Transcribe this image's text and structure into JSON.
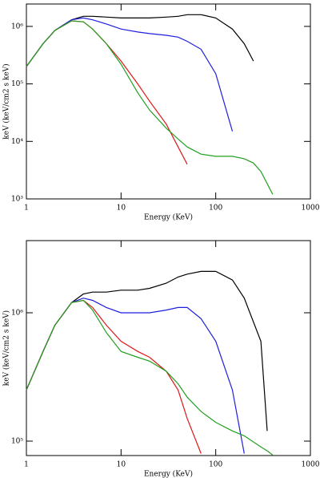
{
  "chart_data": [
    {
      "type": "line",
      "xlabel": "Energy (KeV)",
      "ylabel": "keV (keV/cm2 s keV)",
      "xscale": "log",
      "yscale": "log",
      "xlim": [
        1,
        1000
      ],
      "ylim": [
        1000,
        2450000
      ],
      "xticks": [
        1,
        10,
        100,
        1000
      ],
      "yticks": [
        {
          "value": 1000,
          "label": "10³"
        },
        {
          "value": 10000,
          "label": "10⁴"
        },
        {
          "value": 100000,
          "label": "10⁵"
        },
        {
          "value": 1000000,
          "label": "10⁶"
        }
      ],
      "x": [
        1,
        1.5,
        2,
        3,
        4,
        5,
        7,
        10,
        15,
        20,
        30,
        40,
        50,
        70,
        100,
        150,
        200,
        250,
        300,
        400
      ],
      "series": [
        {
          "color": "#000000",
          "values": [
            200000,
            500000,
            850000,
            1300000,
            1500000,
            1500000,
            1450000,
            1400000,
            1400000,
            1400000,
            1450000,
            1500000,
            1600000,
            1600000,
            1400000,
            900000,
            500000,
            250000,
            null,
            null
          ]
        },
        {
          "color": "#1f1fe0",
          "values": [
            200000,
            500000,
            850000,
            1300000,
            1400000,
            1300000,
            1100000,
            900000,
            800000,
            750000,
            700000,
            650000,
            550000,
            400000,
            150000,
            15000,
            null,
            null,
            null,
            null
          ]
        },
        {
          "color": "#e01818",
          "values": [
            200000,
            500000,
            850000,
            1250000,
            1200000,
            900000,
            500000,
            250000,
            100000,
            50000,
            20000,
            8000,
            4000,
            null,
            null,
            null,
            null,
            null,
            null,
            null
          ]
        },
        {
          "color": "#22a022",
          "values": [
            200000,
            500000,
            850000,
            1250000,
            1200000,
            900000,
            500000,
            220000,
            70000,
            35000,
            17000,
            11000,
            8000,
            6000,
            5500,
            5500,
            5000,
            4200,
            3000,
            1200
          ]
        }
      ]
    },
    {
      "type": "line",
      "xlabel": "Energy (KeV)",
      "ylabel": "keV (keV/cm2 s keV)",
      "xscale": "log",
      "yscale": "log",
      "xlim": [
        1,
        1000
      ],
      "ylim": [
        77200,
        3650000
      ],
      "xticks": [
        1,
        10,
        100,
        1000
      ],
      "yticks": [
        {
          "value": 100000,
          "label": "10⁵"
        },
        {
          "value": 1000000,
          "label": "10⁶"
        }
      ],
      "x": [
        1,
        1.5,
        2,
        3,
        4,
        5,
        7,
        10,
        15,
        20,
        30,
        40,
        50,
        70,
        100,
        150,
        200,
        300,
        350,
        400
      ],
      "series": [
        {
          "color": "#000000",
          "values": [
            250000,
            500000,
            800000,
            1200000,
            1400000,
            1450000,
            1450000,
            1500000,
            1500000,
            1550000,
            1700000,
            1900000,
            2000000,
            2100000,
            2100000,
            1800000,
            1300000,
            600000,
            120000,
            null
          ]
        },
        {
          "color": "#1f1fe0",
          "values": [
            250000,
            500000,
            800000,
            1200000,
            1300000,
            1250000,
            1100000,
            1000000,
            1000000,
            1000000,
            1050000,
            1100000,
            1100000,
            900000,
            600000,
            250000,
            80000,
            null,
            null,
            null
          ]
        },
        {
          "color": "#e01818",
          "values": [
            250000,
            500000,
            800000,
            1200000,
            1250000,
            1100000,
            800000,
            600000,
            500000,
            450000,
            350000,
            250000,
            150000,
            80000,
            null,
            null,
            null,
            null,
            null,
            null
          ]
        },
        {
          "color": "#22a022",
          "values": [
            250000,
            500000,
            800000,
            1200000,
            1250000,
            1050000,
            700000,
            500000,
            450000,
            420000,
            350000,
            280000,
            220000,
            170000,
            140000,
            120000,
            110000,
            90000,
            84000,
            78000
          ]
        }
      ]
    }
  ]
}
